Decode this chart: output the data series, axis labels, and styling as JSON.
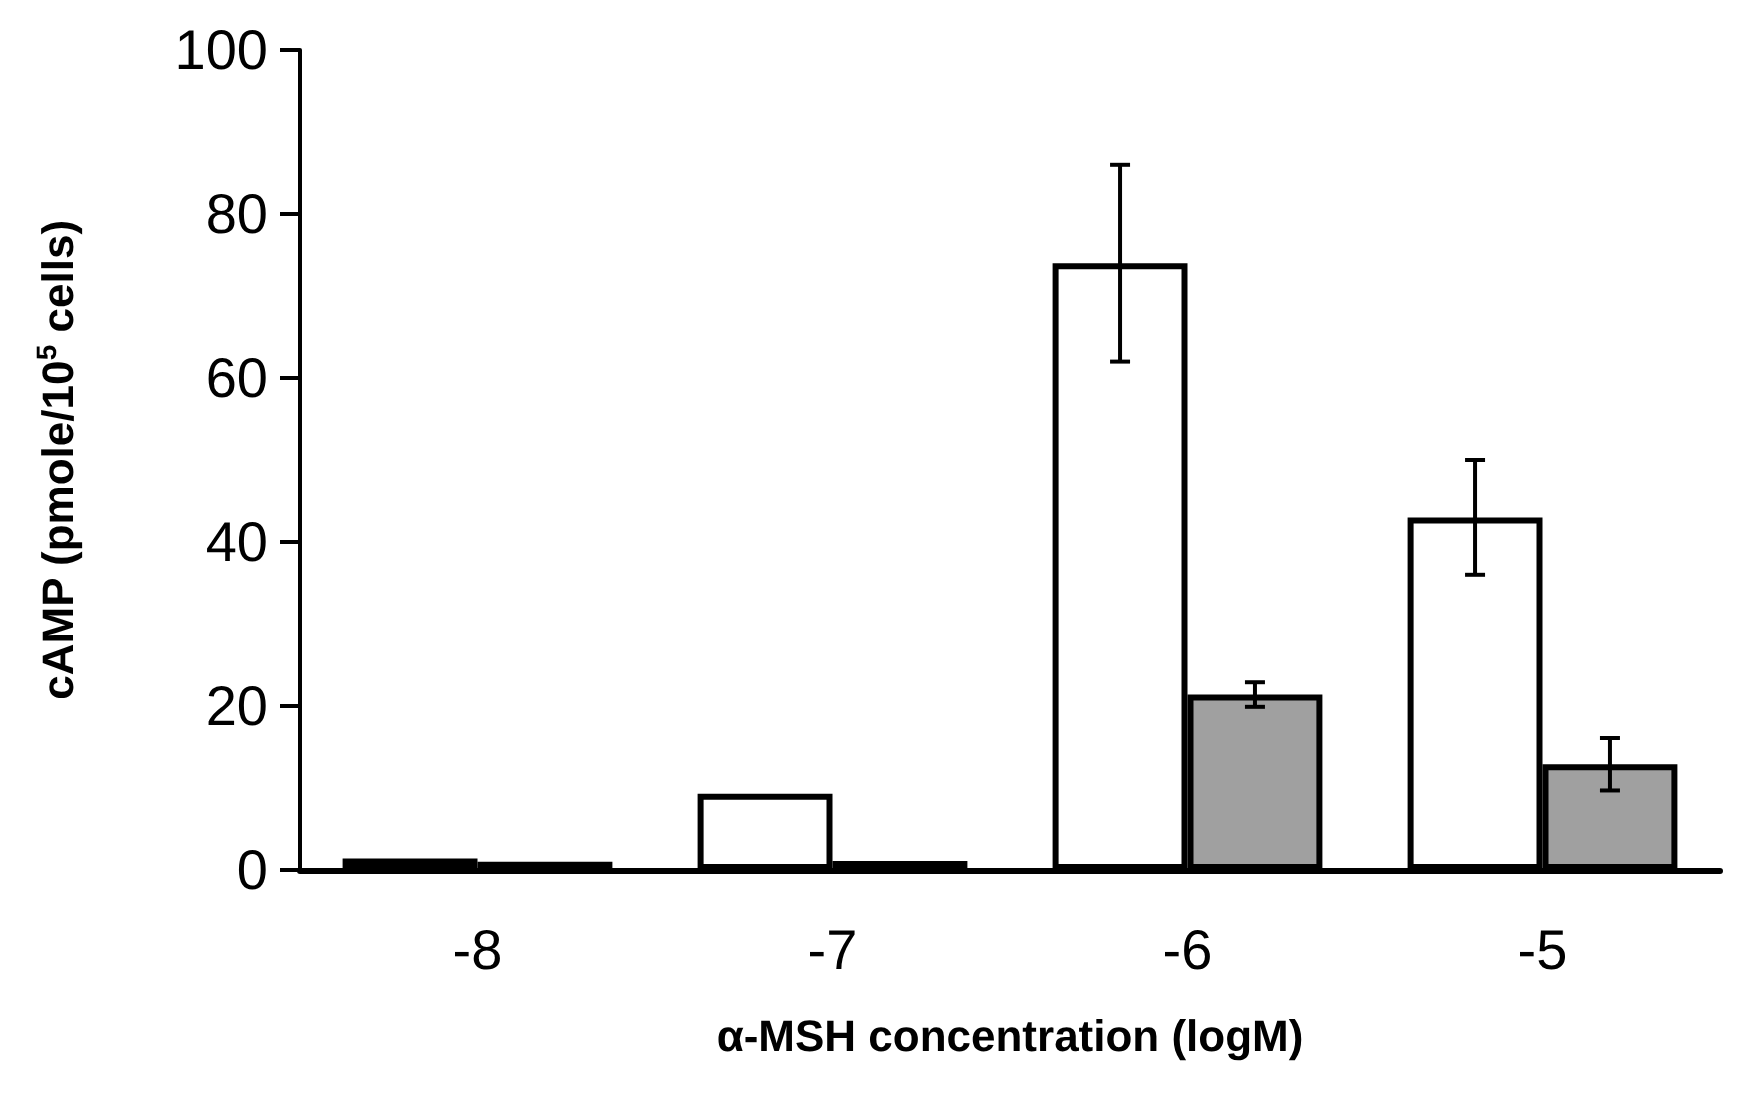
{
  "chart_data": {
    "type": "bar",
    "xlabel": "α-MSH concentration (logM)",
    "ylabel": "cAMP (pmole/10$^{5}$ cells)",
    "categories": [
      "-8",
      "-7",
      "-6",
      "-5"
    ],
    "series": [
      {
        "color": "#ffffff",
        "values": [
          1.4,
          9.3,
          74,
          43
        ],
        "errors": [
          null,
          null,
          12,
          7
        ]
      },
      {
        "color": "#a0a0a0",
        "values": [
          1.0,
          1.1,
          21.4,
          12.9
        ],
        "errors": [
          null,
          null,
          1.5,
          3.2
        ]
      }
    ],
    "ylim": [
      0,
      100
    ],
    "yticks": [
      0,
      20,
      40,
      60,
      80,
      100
    ],
    "grid": false
  }
}
